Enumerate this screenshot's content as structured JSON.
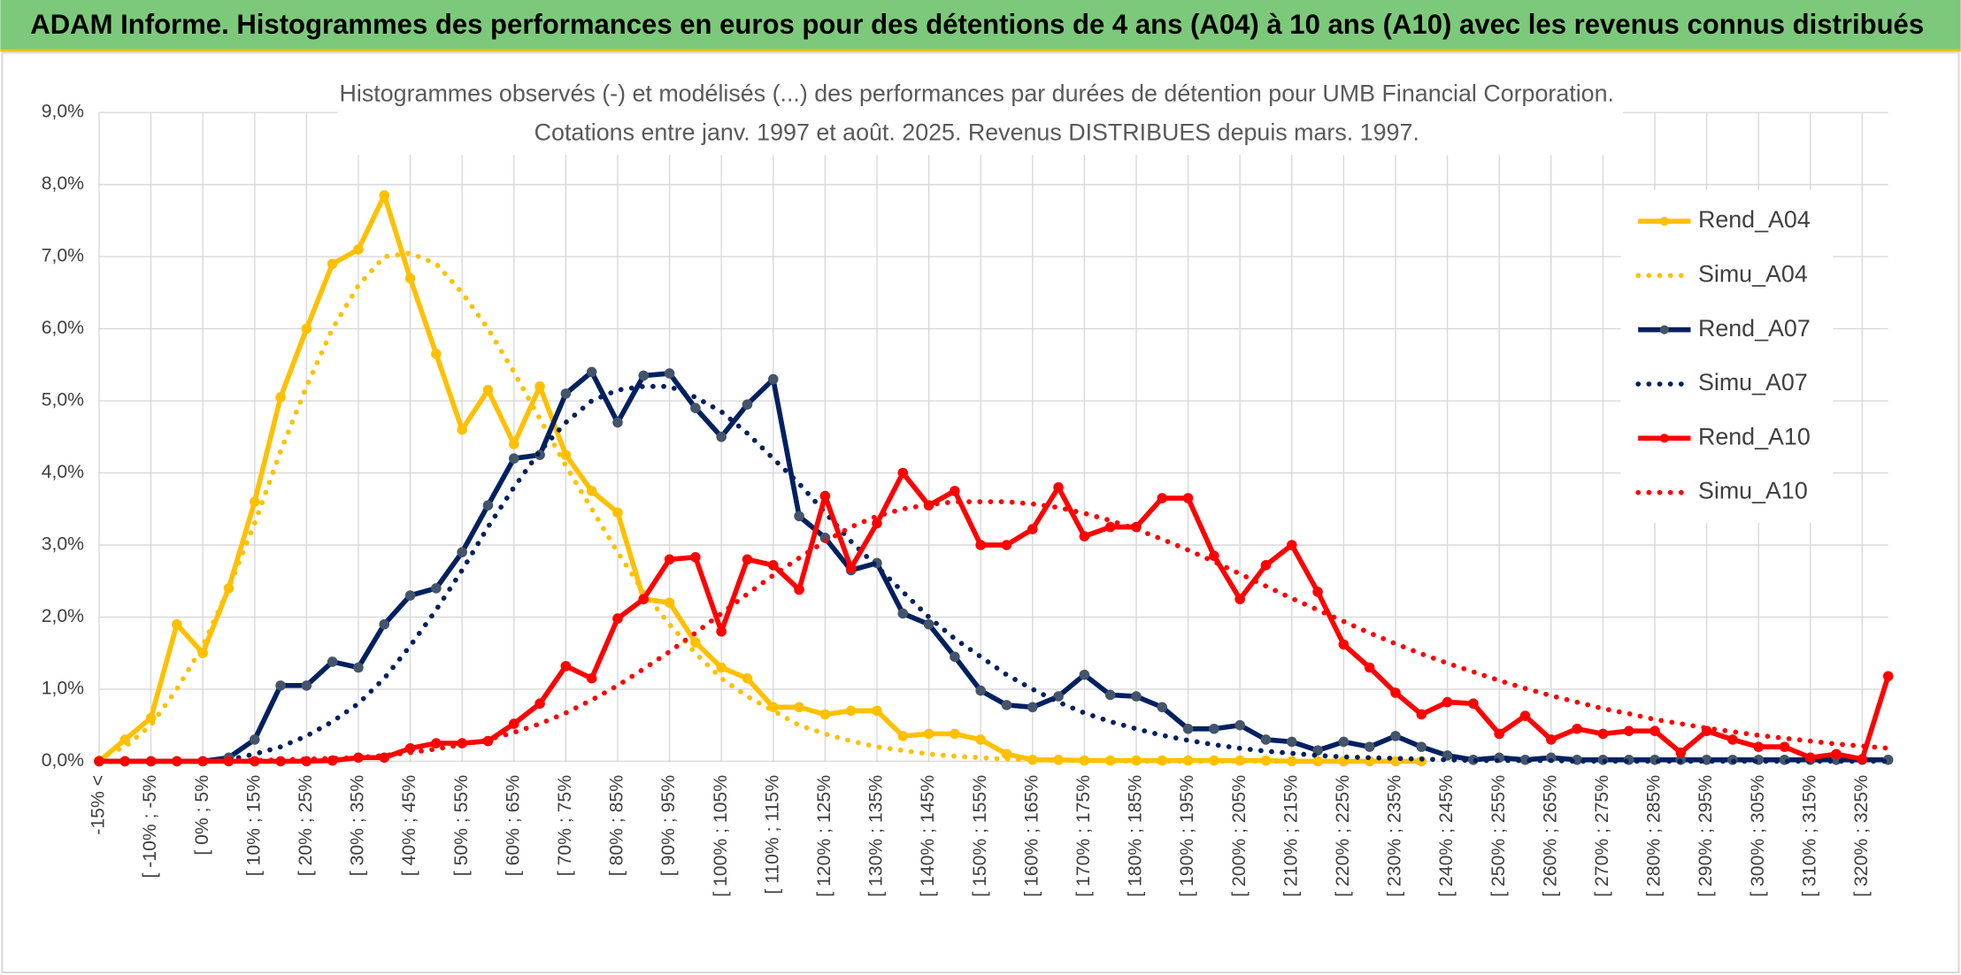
{
  "header": {
    "title": "ADAM Informe. Histogrammes des performances en euros pour des détentions de 4 ans (A04) à 10 ans (A10) avec les revenus connus distribués"
  },
  "chart_data": {
    "type": "line",
    "title": "Histogrammes observés (-) et modélisés (...) des performances par durées de détention pour UMB Financial Corporation.",
    "subtitle": "Cotations entre janv. 1997 et août. 2025. Revenus DISTRIBUES depuis mars. 1997.",
    "categories": [
      "-15% <",
      null,
      "[ -10% ; -5%",
      null,
      "[ 0% ; 5%",
      null,
      "[ 10% ; 15%",
      null,
      "[ 20% ; 25%",
      null,
      "[ 30% ; 35%",
      null,
      "[ 40% ; 45%",
      null,
      "[ 50% ; 55%",
      null,
      "[ 60% ; 65%",
      null,
      "[ 70% ; 75%",
      null,
      "[ 80% ; 85%",
      null,
      "[ 90% ; 95%",
      null,
      "[ 100% ; 105%",
      null,
      "[ 110% ; 115%",
      null,
      "[ 120% ; 125%",
      null,
      "[ 130% ; 135%",
      null,
      "[ 140% ; 145%",
      null,
      "[ 150% ; 155%",
      null,
      "[ 160% ; 165%",
      null,
      "[ 170% ; 175%",
      null,
      "[ 180% ; 185%",
      null,
      "[ 190% ; 195%",
      null,
      "[ 200% ; 205%",
      null,
      "[ 210% ; 215%",
      null,
      "[ 220% ; 225%",
      null,
      "[ 230% ; 235%",
      null,
      "[ 240% ; 245%",
      null,
      "[ 250% ; 255%",
      null,
      "[ 260% ; 265%",
      null,
      "[ 270% ; 275%",
      null,
      "[ 280% ; 285%",
      null,
      "[ 290% ; 295%",
      null,
      "[ 300% ; 305%",
      null,
      "[ 310% ; 315%",
      null,
      "[ 320% ; 325%",
      null
    ],
    "series": [
      {
        "name": "Rend_A04",
        "color": "#ffc000",
        "marker_color": "#ffc000",
        "style": "solid",
        "markers": true,
        "values": [
          0,
          0.3,
          0.6,
          1.9,
          1.5,
          2.4,
          3.6,
          5.05,
          6.0,
          6.9,
          7.1,
          7.85,
          6.7,
          5.65,
          4.6,
          5.15,
          4.4,
          5.2,
          4.25,
          3.75,
          3.45,
          2.25,
          2.2,
          1.65,
          1.3,
          1.15,
          0.75,
          0.75,
          0.65,
          0.7,
          0.7,
          0.35,
          0.38,
          0.38,
          0.3,
          0.1,
          0.02,
          0.02,
          0.01,
          0.01,
          0.01,
          0.01,
          0.01,
          0.01,
          0.01,
          0.01,
          0,
          0,
          0,
          0,
          0,
          0,
          null,
          null,
          null,
          null,
          null,
          null,
          null,
          null,
          null,
          null,
          null,
          null,
          null,
          null,
          null,
          null,
          null,
          null
        ]
      },
      {
        "name": "Simu_A04",
        "color": "#ffc000",
        "style": "dotted",
        "markers": false,
        "values": [
          0.05,
          0.2,
          0.5,
          1.0,
          1.6,
          2.4,
          3.3,
          4.3,
          5.2,
          6.0,
          6.6,
          7.0,
          7.05,
          6.9,
          6.5,
          6.0,
          5.4,
          4.75,
          4.1,
          3.5,
          2.9,
          2.35,
          1.9,
          1.5,
          1.15,
          0.9,
          0.7,
          0.5,
          0.38,
          0.28,
          0.2,
          0.15,
          0.1,
          0.07,
          0.05,
          0.03,
          0.02,
          0.01,
          0.01,
          0.01,
          0,
          0,
          0,
          0,
          0,
          0,
          0,
          0,
          0,
          0,
          0,
          0,
          null,
          null,
          null,
          null,
          null,
          null,
          null,
          null,
          null,
          null,
          null,
          null,
          null,
          null,
          null,
          null,
          null,
          null
        ]
      },
      {
        "name": "Rend_A07",
        "color": "#002060",
        "marker_color": "#44546a",
        "style": "solid",
        "markers": true,
        "values": [
          0,
          0,
          0,
          0,
          0,
          0.05,
          0.3,
          1.05,
          1.05,
          1.38,
          1.3,
          1.9,
          2.3,
          2.4,
          2.9,
          3.55,
          4.2,
          4.25,
          5.1,
          5.4,
          4.7,
          5.35,
          5.38,
          4.9,
          4.5,
          4.95,
          5.3,
          3.4,
          3.1,
          2.65,
          2.75,
          2.05,
          1.9,
          1.45,
          0.98,
          0.78,
          0.75,
          0.9,
          1.2,
          0.92,
          0.9,
          0.75,
          0.45,
          0.45,
          0.5,
          0.3,
          0.27,
          0.15,
          0.27,
          0.2,
          0.35,
          0.2,
          0.08,
          0.02,
          0.05,
          0.02,
          0.05,
          0.02,
          0.02,
          0.02,
          0.02,
          0.02,
          0.02,
          0.02,
          0.02,
          0.02,
          0.02,
          0.02,
          0.02,
          0.02
        ]
      },
      {
        "name": "Simu_A07",
        "color": "#002060",
        "style": "dotted",
        "markers": false,
        "values": [
          0,
          0,
          0,
          0,
          0,
          0.02,
          0.1,
          0.2,
          0.35,
          0.55,
          0.8,
          1.15,
          1.6,
          2.1,
          2.65,
          3.25,
          3.8,
          4.3,
          4.7,
          5.0,
          5.15,
          5.2,
          5.2,
          5.05,
          4.85,
          4.55,
          4.2,
          3.85,
          3.45,
          3.05,
          2.7,
          2.35,
          2.0,
          1.7,
          1.45,
          1.2,
          1.0,
          0.82,
          0.67,
          0.55,
          0.45,
          0.36,
          0.29,
          0.23,
          0.18,
          0.14,
          0.11,
          0.08,
          0.06,
          0.05,
          0.04,
          0.03,
          0.02,
          0.01,
          0.01,
          0.01,
          0.01,
          0,
          0,
          0,
          0,
          0,
          0,
          0,
          0,
          0,
          0,
          0,
          0,
          0
        ]
      },
      {
        "name": "Rend_A10",
        "color": "#ff0000",
        "marker_color": "#ff0000",
        "style": "solid",
        "markers": true,
        "values": [
          0,
          0,
          0,
          0,
          0,
          0,
          0,
          0,
          0,
          0.01,
          0.05,
          0.05,
          0.18,
          0.25,
          0.25,
          0.28,
          0.52,
          0.8,
          1.32,
          1.15,
          1.98,
          2.25,
          2.8,
          2.83,
          1.8,
          2.8,
          2.72,
          2.38,
          3.68,
          2.68,
          3.3,
          4.0,
          3.55,
          3.75,
          3.0,
          3.0,
          3.22,
          3.8,
          3.12,
          3.25,
          3.25,
          3.65,
          3.65,
          2.85,
          2.25,
          2.72,
          3.0,
          2.35,
          1.62,
          1.3,
          0.95,
          0.65,
          0.82,
          0.8,
          0.38,
          0.63,
          0.3,
          0.45,
          0.38,
          0.42,
          0.42,
          0.12,
          0.42,
          0.3,
          0.2,
          0.2,
          0.05,
          0.1,
          0.03,
          1.18
        ]
      },
      {
        "name": "Simu_A10",
        "color": "#ff0000",
        "style": "dotted",
        "markers": false,
        "values": [
          0,
          0,
          0,
          0,
          0,
          0.01,
          0.01,
          0.02,
          0.03,
          0.04,
          0.05,
          0.08,
          0.12,
          0.17,
          0.23,
          0.3,
          0.4,
          0.52,
          0.67,
          0.85,
          1.05,
          1.28,
          1.52,
          1.78,
          2.05,
          2.32,
          2.58,
          2.82,
          3.05,
          3.25,
          3.4,
          3.5,
          3.56,
          3.6,
          3.6,
          3.6,
          3.57,
          3.52,
          3.44,
          3.34,
          3.22,
          3.08,
          2.93,
          2.77,
          2.6,
          2.43,
          2.26,
          2.1,
          1.94,
          1.78,
          1.63,
          1.49,
          1.36,
          1.24,
          1.12,
          1.01,
          0.91,
          0.82,
          0.73,
          0.66,
          0.58,
          0.52,
          0.46,
          0.41,
          0.36,
          0.32,
          0.28,
          0.24,
          0.21,
          0.18
        ]
      }
    ],
    "ylim": [
      0,
      9
    ],
    "yticks": [
      {
        "value": 0,
        "label": "0,0%"
      },
      {
        "value": 1,
        "label": "1,0%"
      },
      {
        "value": 2,
        "label": "2,0%"
      },
      {
        "value": 3,
        "label": "3,0%"
      },
      {
        "value": 4,
        "label": "4,0%"
      },
      {
        "value": 5,
        "label": "5,0%"
      },
      {
        "value": 6,
        "label": "6,0%"
      },
      {
        "value": 7,
        "label": "7,0%"
      },
      {
        "value": 8,
        "label": "8,0%"
      },
      {
        "value": 9,
        "label": "9,0%"
      }
    ],
    "grid": true,
    "legend": "right"
  }
}
